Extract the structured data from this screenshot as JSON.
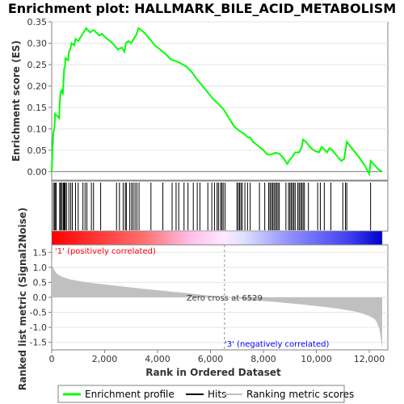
{
  "chart_data": {
    "title": "Enrichment plot: HALLMARK_BILE_ACID_METABOLISM",
    "xlabel": "Rank in Ordered Dataset",
    "xlim": [
      0,
      12488
    ],
    "x_ticks": [
      0,
      2000,
      4000,
      6000,
      8000,
      10000,
      12000
    ],
    "x_tick_labels": [
      "0",
      "2,000",
      "4,000",
      "6,000",
      "8,000",
      "10,000",
      "12,000"
    ],
    "es_panel": {
      "type": "line",
      "ylabel": "Enrichment score (ES)",
      "ylim": [
        -0.02,
        0.35
      ],
      "y_ticks": [
        0.0,
        0.05,
        0.1,
        0.15,
        0.2,
        0.25,
        0.3,
        0.35
      ],
      "y_tick_labels": [
        "0.00",
        "0.05",
        "0.10",
        "0.15",
        "0.20",
        "0.25",
        "0.30",
        "0.35"
      ],
      "color": "#00ff00",
      "points": [
        [
          0,
          0.0
        ],
        [
          20,
          0.04
        ],
        [
          60,
          0.09
        ],
        [
          100,
          0.1
        ],
        [
          130,
          0.135
        ],
        [
          200,
          0.13
        ],
        [
          280,
          0.125
        ],
        [
          300,
          0.155
        ],
        [
          330,
          0.185
        ],
        [
          380,
          0.19
        ],
        [
          420,
          0.18
        ],
        [
          450,
          0.215
        ],
        [
          470,
          0.24
        ],
        [
          500,
          0.245
        ],
        [
          520,
          0.265
        ],
        [
          620,
          0.26
        ],
        [
          650,
          0.28
        ],
        [
          700,
          0.285
        ],
        [
          750,
          0.3
        ],
        [
          850,
          0.295
        ],
        [
          900,
          0.31
        ],
        [
          1000,
          0.305
        ],
        [
          1150,
          0.32
        ],
        [
          1250,
          0.33
        ],
        [
          1300,
          0.335
        ],
        [
          1450,
          0.325
        ],
        [
          1550,
          0.33
        ],
        [
          1600,
          0.33
        ],
        [
          1800,
          0.318
        ],
        [
          1900,
          0.322
        ],
        [
          2000,
          0.315
        ],
        [
          2300,
          0.3
        ],
        [
          2500,
          0.285
        ],
        [
          2650,
          0.29
        ],
        [
          2750,
          0.28
        ],
        [
          2800,
          0.3
        ],
        [
          2900,
          0.305
        ],
        [
          3000,
          0.3
        ],
        [
          3100,
          0.31
        ],
        [
          3200,
          0.32
        ],
        [
          3280,
          0.335
        ],
        [
          3350,
          0.332
        ],
        [
          3500,
          0.325
        ],
        [
          3700,
          0.31
        ],
        [
          3900,
          0.295
        ],
        [
          4100,
          0.285
        ],
        [
          4300,
          0.275
        ],
        [
          4500,
          0.262
        ],
        [
          4700,
          0.258
        ],
        [
          4900,
          0.252
        ],
        [
          5100,
          0.245
        ],
        [
          5300,
          0.232
        ],
        [
          5500,
          0.215
        ],
        [
          5700,
          0.2
        ],
        [
          5900,
          0.185
        ],
        [
          6100,
          0.17
        ],
        [
          6300,
          0.158
        ],
        [
          6500,
          0.145
        ],
        [
          6700,
          0.125
        ],
        [
          6900,
          0.105
        ],
        [
          7100,
          0.095
        ],
        [
          7300,
          0.087
        ],
        [
          7400,
          0.08
        ],
        [
          7500,
          0.08
        ],
        [
          7600,
          0.07
        ],
        [
          7800,
          0.06
        ],
        [
          8000,
          0.05
        ],
        [
          8150,
          0.04
        ],
        [
          8300,
          0.04
        ],
        [
          8450,
          0.044
        ],
        [
          8600,
          0.042
        ],
        [
          8750,
          0.032
        ],
        [
          8900,
          0.018
        ],
        [
          9000,
          0.028
        ],
        [
          9100,
          0.035
        ],
        [
          9200,
          0.045
        ],
        [
          9350,
          0.045
        ],
        [
          9450,
          0.058
        ],
        [
          9500,
          0.075
        ],
        [
          9600,
          0.07
        ],
        [
          9800,
          0.055
        ],
        [
          9950,
          0.048
        ],
        [
          10100,
          0.045
        ],
        [
          10200,
          0.058
        ],
        [
          10300,
          0.052
        ],
        [
          10400,
          0.045
        ],
        [
          10500,
          0.055
        ],
        [
          10600,
          0.05
        ],
        [
          10800,
          0.035
        ],
        [
          10950,
          0.025
        ],
        [
          11050,
          0.03
        ],
        [
          11150,
          0.07
        ],
        [
          11300,
          0.058
        ],
        [
          11600,
          0.035
        ],
        [
          11850,
          0.012
        ],
        [
          11950,
          0.0
        ],
        [
          12000,
          -0.005
        ],
        [
          12050,
          0.025
        ],
        [
          12200,
          0.015
        ],
        [
          12350,
          0.005
        ],
        [
          12488,
          0.0
        ]
      ]
    },
    "hits_panel": {
      "hit_ranks": [
        60,
        110,
        130,
        170,
        300,
        340,
        370,
        430,
        460,
        490,
        510,
        560,
        650,
        720,
        780,
        900,
        1000,
        1180,
        1260,
        1330,
        1500,
        1580,
        1850,
        2450,
        2560,
        2700,
        2780,
        2820,
        2950,
        3020,
        3080,
        3150,
        3220,
        3300,
        3750,
        4200,
        4550,
        4700,
        4800,
        5000,
        5150,
        5350,
        5500,
        5600,
        5900,
        6050,
        6150,
        6250,
        6300,
        6380,
        6430,
        6480,
        6550,
        7000,
        7050,
        7100,
        7150,
        7200,
        7300,
        7400,
        7500,
        7850,
        8050,
        8200,
        8250,
        8300,
        8350,
        8400,
        8450,
        8500,
        8550,
        8600,
        8850,
        8950,
        9000,
        9050,
        9100,
        9150,
        9200,
        9300,
        9350,
        9400,
        9450,
        9500,
        9550,
        9700,
        10050,
        10150,
        10300,
        10550,
        11000,
        11100,
        11150,
        12050
      ]
    },
    "metric_panel": {
      "type": "area",
      "ylabel": "Ranked list metric (Signal2Noise)",
      "ylim": [
        -1.75,
        1.75
      ],
      "y_ticks": [
        -1.5,
        -1.0,
        -0.5,
        0.0,
        0.5,
        1.0,
        1.5
      ],
      "y_tick_labels": [
        "-1.5",
        "-1.0",
        "-0.5",
        "0.0",
        "0.5",
        "1.0",
        "1.5"
      ],
      "fill_color": "#c0c0c0",
      "points": [
        [
          0,
          1.25
        ],
        [
          30,
          1.05
        ],
        [
          100,
          0.9
        ],
        [
          200,
          0.78
        ],
        [
          400,
          0.68
        ],
        [
          700,
          0.6
        ],
        [
          1000,
          0.55
        ],
        [
          1500,
          0.48
        ],
        [
          2000,
          0.43
        ],
        [
          2500,
          0.38
        ],
        [
          3000,
          0.33
        ],
        [
          3500,
          0.28
        ],
        [
          4000,
          0.24
        ],
        [
          4500,
          0.19
        ],
        [
          5000,
          0.15
        ],
        [
          5500,
          0.1
        ],
        [
          6000,
          0.05
        ],
        [
          6529,
          0.0
        ],
        [
          7000,
          -0.04
        ],
        [
          7500,
          -0.08
        ],
        [
          8000,
          -0.12
        ],
        [
          8500,
          -0.16
        ],
        [
          9000,
          -0.2
        ],
        [
          9500,
          -0.24
        ],
        [
          10000,
          -0.29
        ],
        [
          10500,
          -0.34
        ],
        [
          11000,
          -0.4
        ],
        [
          11500,
          -0.48
        ],
        [
          11800,
          -0.56
        ],
        [
          12000,
          -0.62
        ],
        [
          12200,
          -0.72
        ],
        [
          12300,
          -0.85
        ],
        [
          12380,
          -1.05
        ],
        [
          12430,
          -1.3
        ],
        [
          12470,
          -1.6
        ],
        [
          12488,
          -1.7
        ]
      ],
      "zero_cross": 6529,
      "zero_cross_label": "Zero cross at 6529",
      "pos_label": "'1' (positively correlated)",
      "neg_label": "'3' (negatively correlated)",
      "pos_color": "#ff0000",
      "neg_color": "#0000ff"
    },
    "legend": {
      "placement": "bottom",
      "entries": [
        {
          "label": "Enrichment profile",
          "color": "#00ff00"
        },
        {
          "label": "Hits",
          "color": "#000000"
        },
        {
          "label": "Ranking metric scores",
          "color": "#c0c0c0"
        }
      ]
    }
  }
}
